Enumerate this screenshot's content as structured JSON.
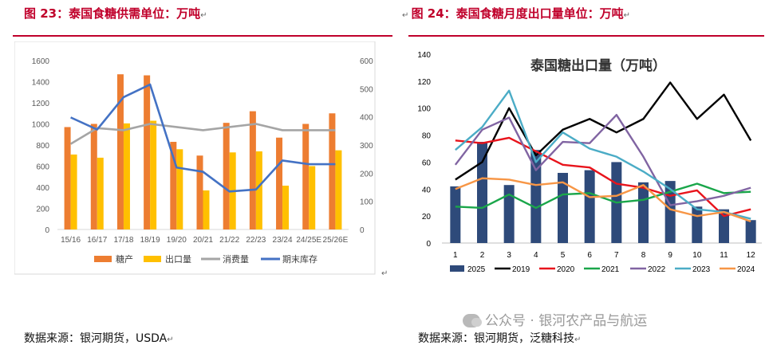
{
  "left": {
    "header": "图 23：泰国食糖供需单位：万吨",
    "source": "数据来源：银河期货，USDA",
    "chart_data": {
      "type": "bar",
      "title": "",
      "categories": [
        "15/16",
        "16/17",
        "17/18",
        "18/19",
        "19/20",
        "20/21",
        "21/22",
        "22/23",
        "23/24",
        "24/25E",
        "25/26E"
      ],
      "y_left_ticks": [
        0,
        200,
        400,
        600,
        800,
        1000,
        1200,
        1400,
        1600
      ],
      "y_right_ticks": [
        0,
        100,
        200,
        300,
        400,
        500,
        600
      ],
      "ylim_left": [
        0,
        1600
      ],
      "ylim_right": [
        0,
        600
      ],
      "bar_series": [
        {
          "name": "糖产",
          "color": "#ed7d31",
          "values": [
            970,
            1000,
            1470,
            1460,
            830,
            700,
            1010,
            1120,
            870,
            1000,
            1100
          ]
        },
        {
          "name": "出口量",
          "color": "#ffc000",
          "values": [
            710,
            680,
            1005,
            1030,
            760,
            370,
            730,
            740,
            415,
            600,
            750
          ]
        }
      ],
      "line_series": [
        {
          "name": "消费量",
          "color": "#a5a5a5",
          "axis": "left",
          "values": [
            810,
            960,
            940,
            1000,
            970,
            940,
            970,
            1000,
            940,
            940,
            940
          ]
        },
        {
          "name": "期末库存",
          "color": "#4472c4",
          "axis": "right",
          "values": [
            398,
            355,
            470,
            515,
            220,
            205,
            135,
            142,
            245,
            232,
            232
          ]
        }
      ],
      "legend": [
        "糖产",
        "出口量",
        "消费量",
        "期末库存"
      ]
    }
  },
  "right": {
    "header": "图 24：泰国食糖月度出口量单位：万吨",
    "source": "数据来源：银河期货，泛糖科技",
    "chart_data": {
      "type": "bar",
      "title": "泰国糖出口量（万吨）",
      "categories": [
        "1",
        "2",
        "3",
        "4",
        "5",
        "6",
        "7",
        "8",
        "9",
        "10",
        "11",
        "12"
      ],
      "y_ticks": [
        0,
        20,
        40,
        60,
        80,
        100,
        120,
        140
      ],
      "ylim": [
        0,
        140
      ],
      "bar_series": [
        {
          "name": "2025",
          "color": "#2e4a7a",
          "values": [
            42,
            75,
            43,
            69,
            52,
            54,
            60,
            45,
            46,
            27,
            25,
            17
          ]
        }
      ],
      "line_series": [
        {
          "name": "2019",
          "color": "#000000",
          "values": [
            47,
            60,
            100,
            65,
            84,
            92,
            82,
            92,
            119,
            92,
            110,
            76
          ]
        },
        {
          "name": "2020",
          "color": "#e8141c",
          "values": [
            76,
            74,
            78,
            68,
            58,
            56,
            44,
            41,
            35,
            39,
            20,
            25
          ]
        },
        {
          "name": "2021",
          "color": "#1aa64a",
          "values": [
            27,
            26,
            36,
            26,
            36,
            37,
            30,
            32,
            38,
            44,
            37,
            38
          ]
        },
        {
          "name": "2022",
          "color": "#8064a2",
          "values": [
            58,
            84,
            93,
            54,
            75,
            74,
            95,
            64,
            28,
            31,
            35,
            41
          ]
        },
        {
          "name": "2023",
          "color": "#4bacc6",
          "values": [
            69,
            86,
            113,
            60,
            82,
            70,
            64,
            53,
            40,
            25,
            23,
            18
          ]
        },
        {
          "name": "2024",
          "color": "#f79646",
          "values": [
            40,
            48,
            47,
            43,
            45,
            34,
            35,
            43,
            25,
            20,
            23,
            16
          ]
        }
      ],
      "legend": [
        "2025",
        "2019",
        "2020",
        "2021",
        "2022",
        "2023",
        "2024"
      ]
    }
  },
  "watermark": "公众号 · 银河农产品与航运"
}
